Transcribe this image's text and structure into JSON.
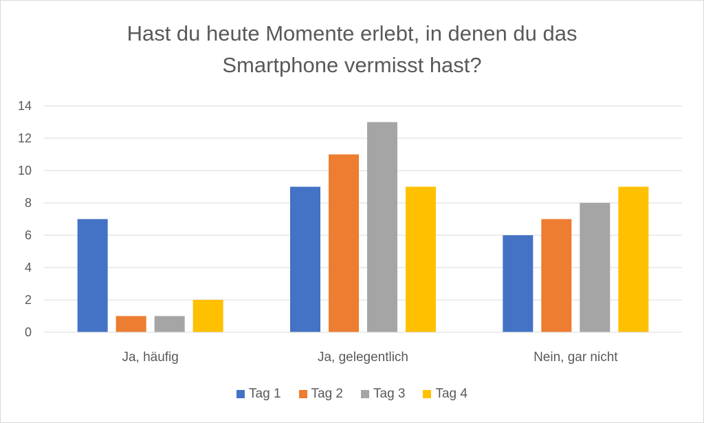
{
  "chart_data": {
    "type": "bar",
    "title_lines": [
      "Hast du heute Momente erlebt, in denen du das",
      "Smartphone vermisst hast?"
    ],
    "categories": [
      "Ja, häufig",
      "Ja, gelegentlich",
      "Nein, gar nicht"
    ],
    "series": [
      {
        "name": "Tag 1",
        "values": [
          7,
          9,
          6
        ],
        "color": "#4472c4"
      },
      {
        "name": "Tag 2",
        "values": [
          1,
          11,
          7
        ],
        "color": "#ed7d31"
      },
      {
        "name": "Tag 3",
        "values": [
          1,
          13,
          8
        ],
        "color": "#a5a5a5"
      },
      {
        "name": "Tag 4",
        "values": [
          2,
          9,
          9
        ],
        "color": "#ffc000"
      }
    ],
    "ylim": [
      0,
      14
    ],
    "yticks": [
      0,
      2,
      4,
      6,
      8,
      10,
      12,
      14
    ],
    "grid": true,
    "legend_position": "bottom"
  }
}
